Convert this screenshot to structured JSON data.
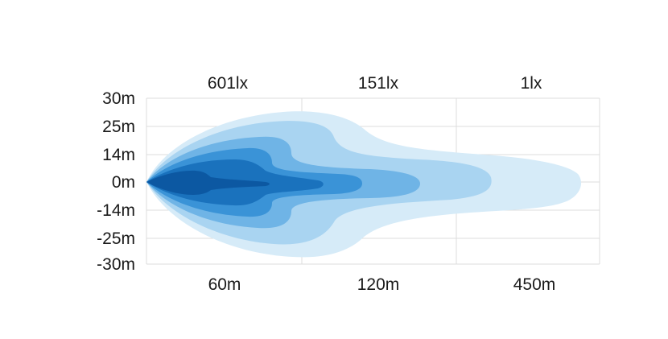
{
  "chart_data": {
    "type": "beam-pattern",
    "title": "",
    "xlabel": "",
    "ylabel": "",
    "y_tick_labels": [
      "30m",
      "25m",
      "14m",
      "0m",
      "-14m",
      "-25m",
      "-30m"
    ],
    "x_tick_labels": [
      "60m",
      "120m",
      "450m"
    ],
    "lux_labels": [
      "601lx",
      "151lx",
      "1lx"
    ],
    "grid": true,
    "zones": [
      {
        "level": 1,
        "color": "#d6ebf8"
      },
      {
        "level": 2,
        "color": "#a9d4f1"
      },
      {
        "level": 3,
        "color": "#6fb4e6"
      },
      {
        "level": 4,
        "color": "#3a93d7"
      },
      {
        "level": 5,
        "color": "#1a72bd"
      },
      {
        "level": 6,
        "color": "#0c58a2"
      }
    ],
    "colors": {
      "grid": "#dcdcdc",
      "text": "#1a1a1a"
    }
  }
}
